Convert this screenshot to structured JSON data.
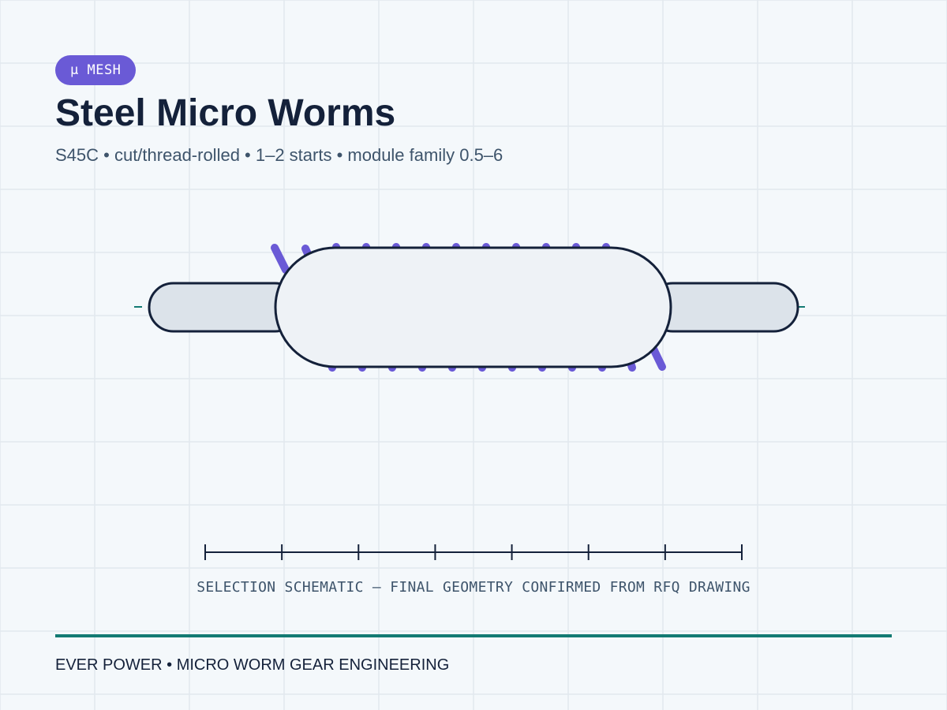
{
  "badge": {
    "label": "µ MESH"
  },
  "header": {
    "title": "Steel Micro Worms",
    "subtitle": "S45C • cut/thread-rolled • 1–2 starts • module family 0.5–6"
  },
  "schematic": {
    "caption": "SELECTION SCHEMATIC — FINAL GEOMETRY CONFIRMED FROM RFQ DRAWING",
    "scale_ticks": 8
  },
  "footer": {
    "text": "EVER POWER • MICRO WORM GEAR ENGINEERING"
  },
  "colors": {
    "background": "#f4f8fb",
    "grid": "#e2e8ee",
    "accent": "#6a5ad6",
    "teal": "#137a73",
    "ink": "#14213a",
    "muted": "#3e546b",
    "body_fill": "#eef2f6",
    "shaft_fill": "#dce3ea"
  }
}
